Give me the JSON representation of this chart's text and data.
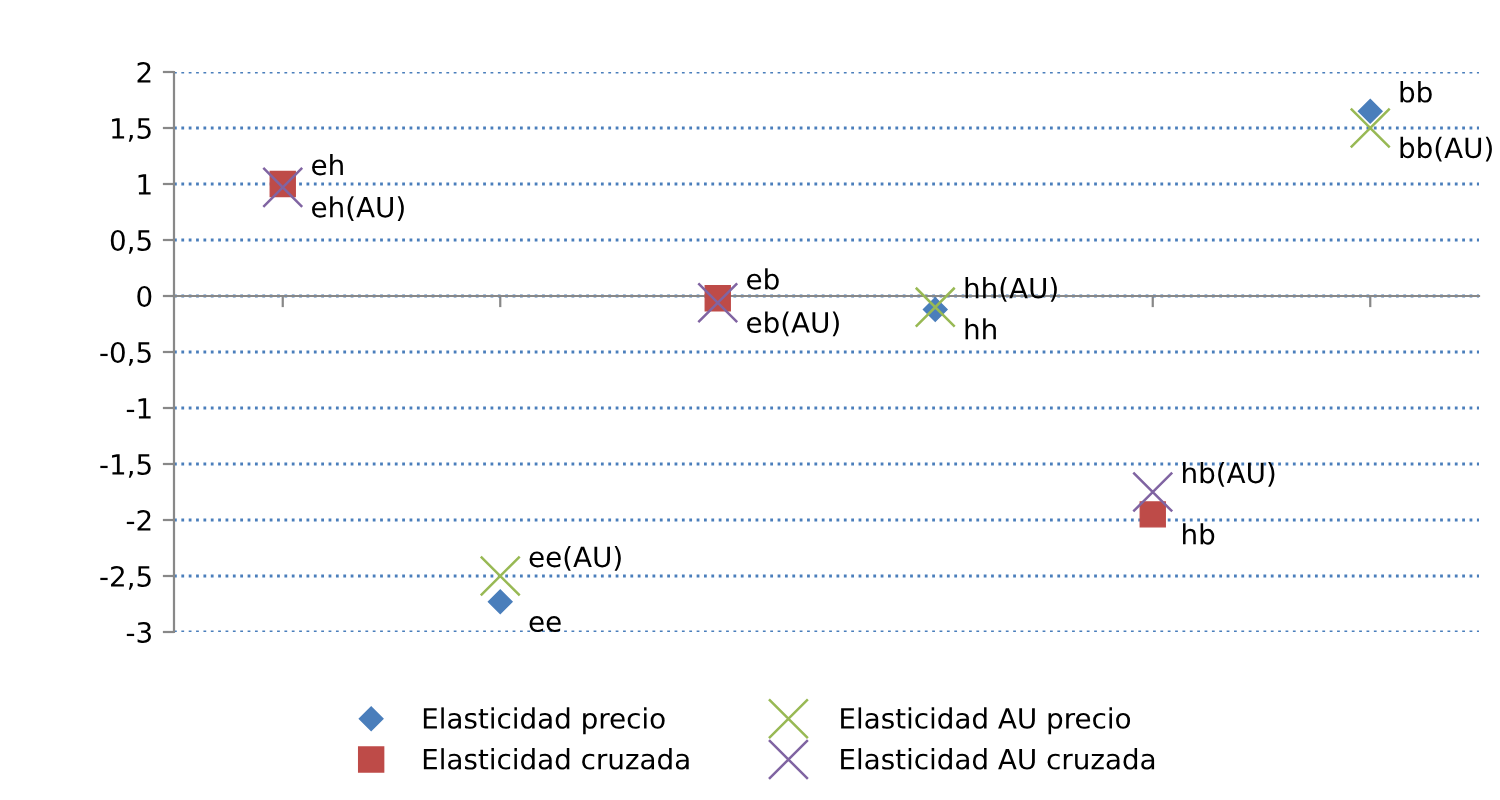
{
  "chart_data": {
    "type": "scatter",
    "categories": [
      null,
      null,
      null,
      null,
      null,
      null
    ],
    "ylim": [
      -3,
      2
    ],
    "yticks": [
      {
        "value": -3,
        "label": "-3"
      },
      {
        "value": -2.5,
        "label": "-2,5"
      },
      {
        "value": -2,
        "label": "-2"
      },
      {
        "value": -1.5,
        "label": "-1,5"
      },
      {
        "value": -1,
        "label": "-1"
      },
      {
        "value": -0.5,
        "label": "-0,5"
      },
      {
        "value": 0,
        "label": "0"
      },
      {
        "value": 0.5,
        "label": "0,5"
      },
      {
        "value": 1,
        "label": "1"
      },
      {
        "value": 1.5,
        "label": "1,5"
      },
      {
        "value": 2,
        "label": "2"
      }
    ],
    "tick_labels": "y",
    "grid": "y",
    "legend": "bottom",
    "series": [
      {
        "name": "Elasticidad precio",
        "color": "#4a7ebb",
        "marker": "diamond",
        "values": [
          null,
          -2.73,
          null,
          -0.12,
          null,
          1.65
        ],
        "value_labels": [
          null,
          "ee",
          null,
          "hh",
          null,
          "bb"
        ]
      },
      {
        "name": "Elasticidad cruzada",
        "color": "#be4b48",
        "marker": "square",
        "values": [
          1.0,
          null,
          -0.02,
          null,
          -1.95,
          null
        ],
        "value_labels": [
          "eh",
          null,
          "eb",
          null,
          "hb",
          null
        ]
      },
      {
        "name": "Elasticidad AU precio",
        "color": "#98b954",
        "marker": "cross",
        "values": [
          null,
          -2.5,
          null,
          -0.1,
          null,
          1.5
        ],
        "value_labels": [
          null,
          "ee(AU)",
          null,
          "hh(AU)",
          null,
          "bb(AU)"
        ]
      },
      {
        "name": "Elasticidad AU cruzada",
        "color": "#8064a2",
        "marker": "cross",
        "values": [
          0.97,
          null,
          -0.06,
          null,
          -1.75,
          null
        ],
        "value_labels": [
          "eh(AU)",
          null,
          "eb(AU)",
          null,
          "hb(AU)",
          null
        ]
      }
    ]
  }
}
